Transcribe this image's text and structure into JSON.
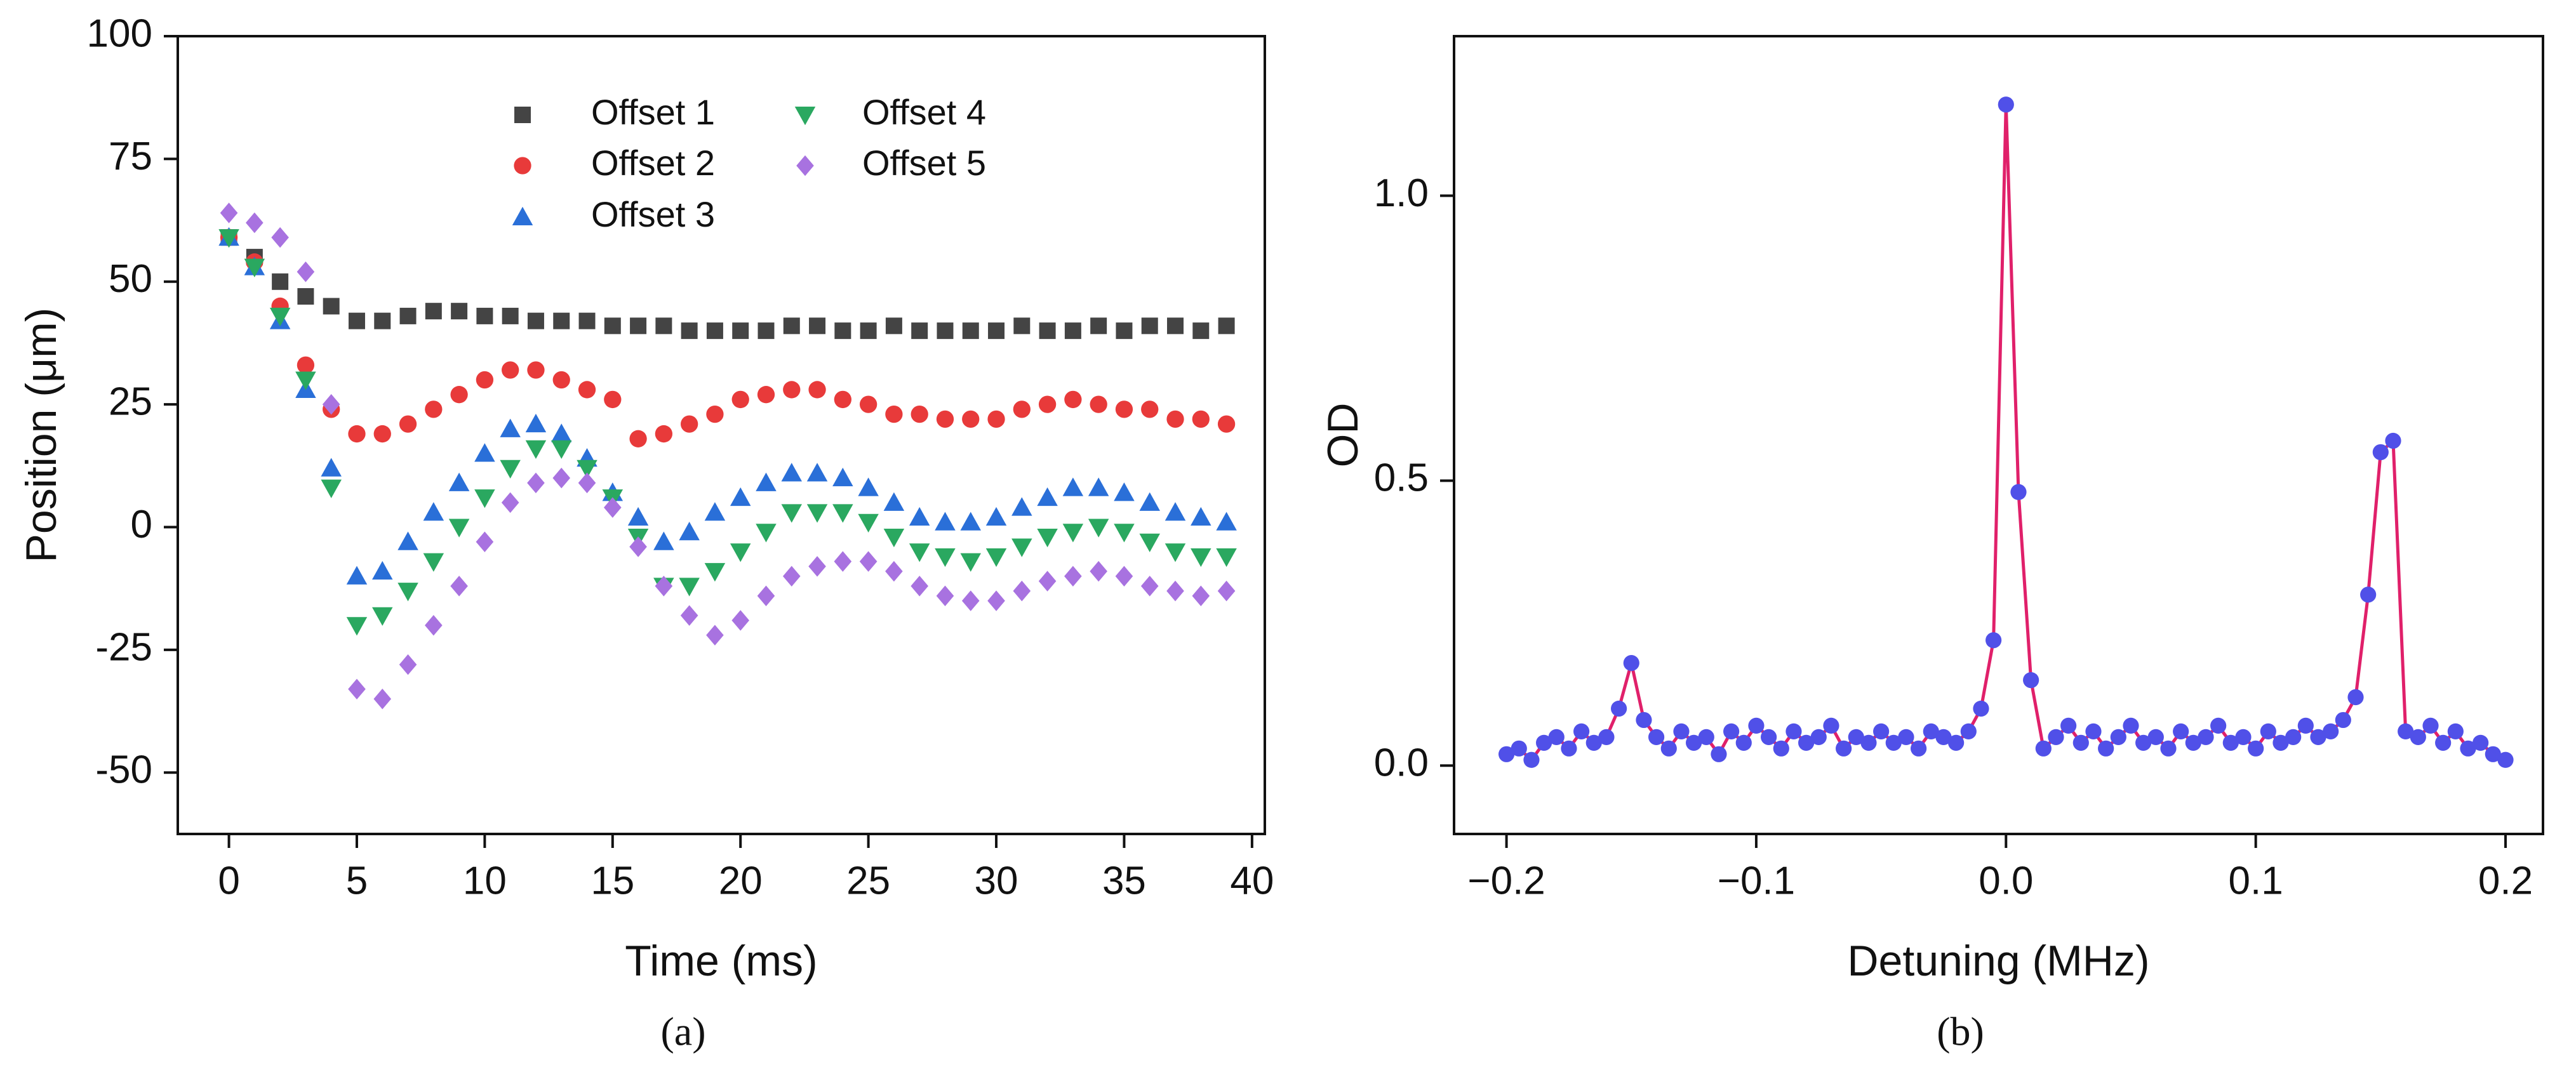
{
  "chart_data": [
    {
      "type": "scatter",
      "caption": "(a)",
      "xlabel": "Time (ms)",
      "ylabel": "Position (μm)",
      "x": [
        0,
        1,
        2,
        3,
        4,
        5,
        6,
        7,
        8,
        9,
        10,
        11,
        12,
        13,
        14,
        15,
        16,
        17,
        18,
        19,
        20,
        21,
        22,
        23,
        24,
        25,
        26,
        27,
        28,
        29,
        30,
        31,
        32,
        33,
        34,
        35,
        36,
        37,
        38,
        39
      ],
      "series": [
        {
          "name": "Offset 1",
          "color": "#444444",
          "marker": "square",
          "values": [
            59,
            55,
            50,
            47,
            45,
            42,
            42,
            43,
            44,
            44,
            43,
            43,
            42,
            42,
            42,
            41,
            41,
            41,
            40,
            40,
            40,
            40,
            41,
            41,
            40,
            40,
            41,
            40,
            40,
            40,
            40,
            41,
            40,
            40,
            41,
            40,
            41,
            41,
            40,
            41
          ]
        },
        {
          "name": "Offset 2",
          "color": "#e83a3a",
          "marker": "circle",
          "values": [
            59,
            54,
            45,
            33,
            24,
            19,
            19,
            21,
            24,
            27,
            30,
            32,
            32,
            30,
            28,
            26,
            18,
            19,
            21,
            23,
            26,
            27,
            28,
            28,
            26,
            25,
            23,
            23,
            22,
            22,
            22,
            24,
            25,
            26,
            25,
            24,
            24,
            22,
            22,
            21
          ]
        },
        {
          "name": "Offset 3",
          "color": "#2a6fd8",
          "marker": "triangle-up",
          "values": [
            59,
            53,
            42,
            28,
            12,
            -10,
            -9,
            -3,
            3,
            9,
            15,
            20,
            21,
            19,
            14,
            7,
            2,
            -3,
            -1,
            3,
            6,
            9,
            11,
            11,
            10,
            8,
            5,
            2,
            1,
            1,
            2,
            4,
            6,
            8,
            8,
            7,
            5,
            3,
            2,
            1
          ]
        },
        {
          "name": "Offset 4",
          "color": "#2aa860",
          "marker": "triangle-down",
          "values": [
            59,
            53,
            43,
            30,
            8,
            -20,
            -18,
            -13,
            -7,
            0,
            6,
            12,
            16,
            16,
            12,
            6,
            -2,
            -12,
            -12,
            -9,
            -5,
            -1,
            3,
            3,
            3,
            1,
            -2,
            -5,
            -6,
            -7,
            -6,
            -4,
            -2,
            -1,
            0,
            -1,
            -3,
            -5,
            -6,
            -6
          ]
        },
        {
          "name": "Offset 5",
          "color": "#a872e0",
          "marker": "diamond",
          "values": [
            64,
            62,
            59,
            52,
            25,
            -33,
            -35,
            -28,
            -20,
            -12,
            -3,
            5,
            9,
            10,
            9,
            4,
            -4,
            -12,
            -18,
            -22,
            -19,
            -14,
            -10,
            -8,
            -7,
            -7,
            -9,
            -12,
            -14,
            -15,
            -15,
            -13,
            -11,
            -10,
            -9,
            -10,
            -12,
            -13,
            -14,
            -13
          ]
        }
      ],
      "xlim": [
        -2,
        40.5
      ],
      "ylim": [
        -62.5,
        100
      ],
      "xticks": [
        0,
        5,
        10,
        15,
        20,
        25,
        30,
        35,
        40
      ],
      "yticks": [
        -50,
        -25,
        0,
        25,
        50,
        75,
        100
      ]
    },
    {
      "type": "scatter",
      "caption": "(b)",
      "xlabel": "Detuning (MHz)",
      "ylabel": "OD",
      "x": [
        -0.2,
        -0.195,
        -0.19,
        -0.185,
        -0.18,
        -0.175,
        -0.17,
        -0.165,
        -0.16,
        -0.155,
        -0.15,
        -0.145,
        -0.14,
        -0.135,
        -0.13,
        -0.125,
        -0.12,
        -0.115,
        -0.11,
        -0.105,
        -0.1,
        -0.095,
        -0.09,
        -0.085,
        -0.08,
        -0.075,
        -0.07,
        -0.065,
        -0.06,
        -0.055,
        -0.05,
        -0.045,
        -0.04,
        -0.035,
        -0.03,
        -0.025,
        -0.02,
        -0.015,
        -0.01,
        -0.005,
        0,
        0.005,
        0.01,
        0.015,
        0.02,
        0.025,
        0.03,
        0.035,
        0.04,
        0.045,
        0.05,
        0.055,
        0.06,
        0.065,
        0.07,
        0.075,
        0.08,
        0.085,
        0.09,
        0.095,
        0.1,
        0.105,
        0.11,
        0.115,
        0.12,
        0.125,
        0.13,
        0.135,
        0.14,
        0.145,
        0.15,
        0.155,
        0.16,
        0.165,
        0.17,
        0.175,
        0.18,
        0.185,
        0.19,
        0.195,
        0.2
      ],
      "series": [
        {
          "color": "#5050e8",
          "line_color": "#e0206a",
          "marker": "circle",
          "values": [
            0.02,
            0.03,
            0.01,
            0.04,
            0.05,
            0.03,
            0.06,
            0.04,
            0.05,
            0.1,
            0.18,
            0.08,
            0.05,
            0.03,
            0.06,
            0.04,
            0.05,
            0.02,
            0.06,
            0.04,
            0.07,
            0.05,
            0.03,
            0.06,
            0.04,
            0.05,
            0.07,
            0.03,
            0.05,
            0.04,
            0.06,
            0.04,
            0.05,
            0.03,
            0.06,
            0.05,
            0.04,
            0.06,
            0.1,
            0.22,
            1.16,
            0.48,
            0.15,
            0.03,
            0.05,
            0.07,
            0.04,
            0.06,
            0.03,
            0.05,
            0.07,
            0.04,
            0.05,
            0.03,
            0.06,
            0.04,
            0.05,
            0.07,
            0.04,
            0.05,
            0.03,
            0.06,
            0.04,
            0.05,
            0.07,
            0.05,
            0.06,
            0.08,
            0.12,
            0.3,
            0.55,
            0.57,
            0.06,
            0.05,
            0.07,
            0.04,
            0.06,
            0.03,
            0.04,
            0.02,
            0.01
          ]
        }
      ],
      "xlim": [
        -0.221,
        0.215
      ],
      "ylim": [
        -0.12,
        1.28
      ],
      "xticks": [
        {
          "value": -0.2,
          "label": "−0.2"
        },
        {
          "value": -0.1,
          "label": "−0.1"
        },
        {
          "value": 0,
          "label": "0.0"
        },
        0.1,
        0.2
      ],
      "yticks": [
        {
          "value": 0,
          "label": "0.0"
        },
        0.5,
        {
          "value": 1,
          "label": "1.0"
        }
      ]
    }
  ]
}
